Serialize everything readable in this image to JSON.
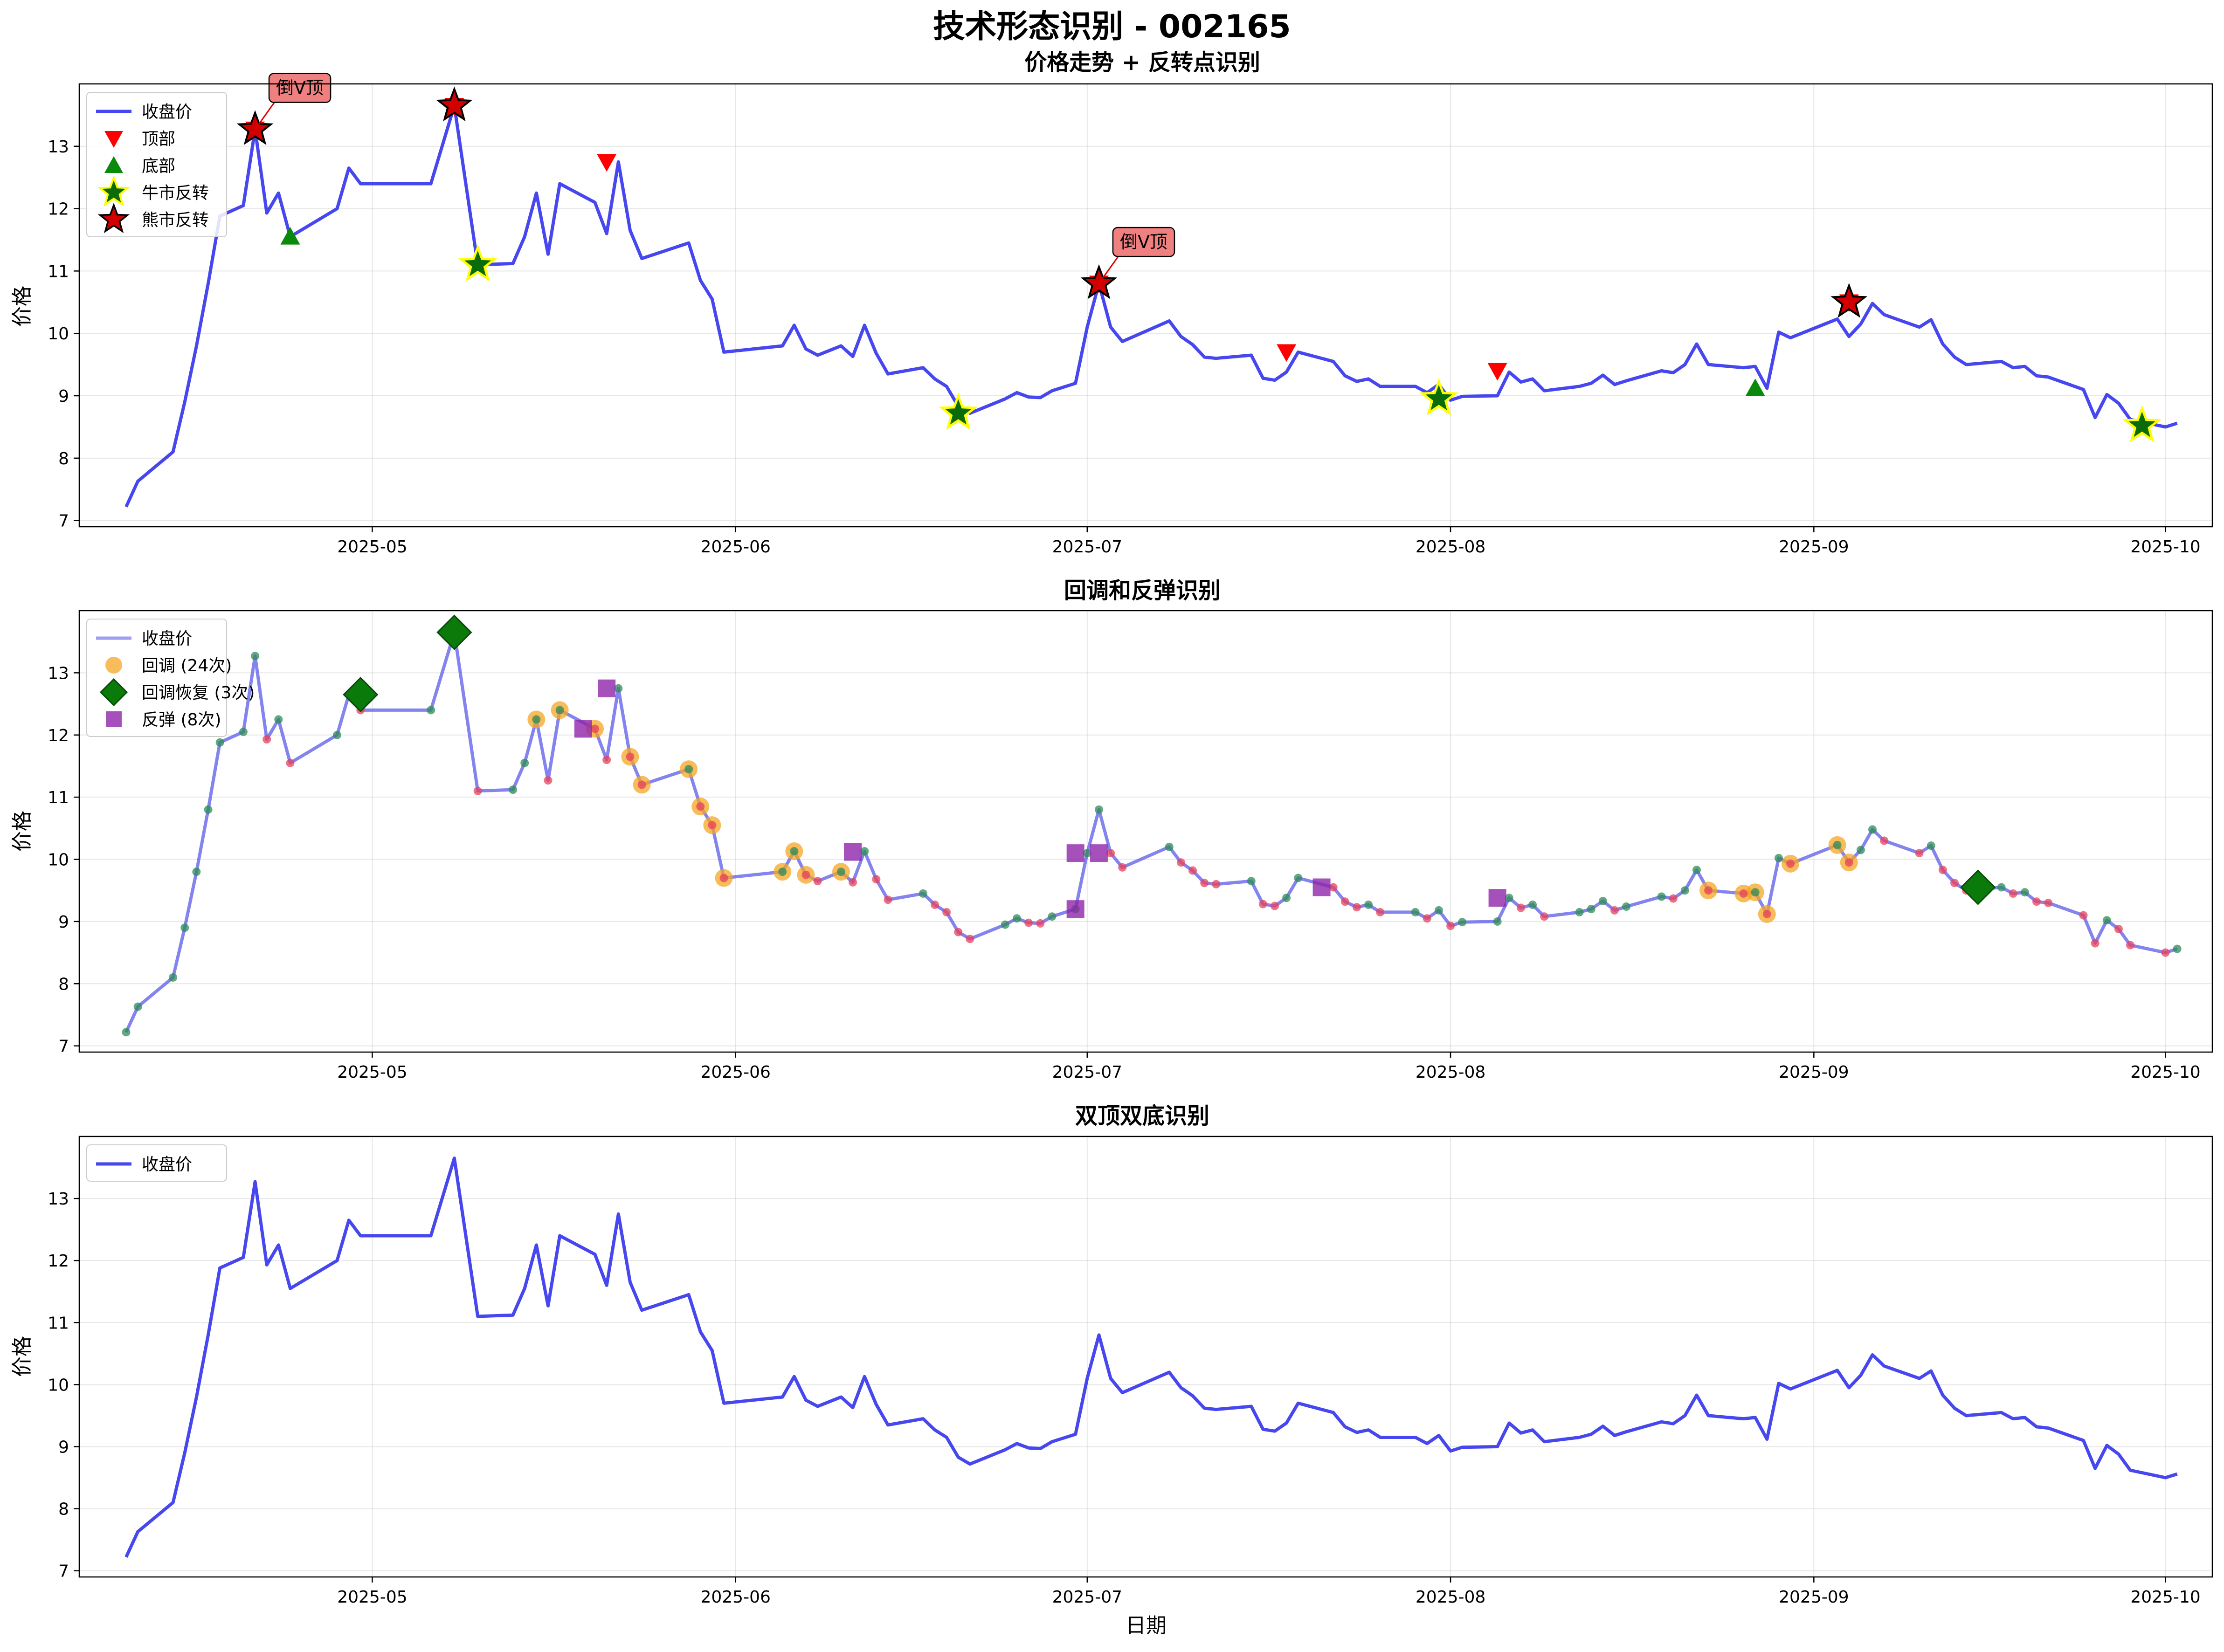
{
  "figure": {
    "title": "技术形态识别 - 002165"
  },
  "chart_data": [
    {
      "type": "line",
      "title": "价格走势 + 反转点识别",
      "xlabel": "",
      "ylabel": "价格",
      "ylim": [
        6.9,
        14.0
      ],
      "yticks": [
        7,
        8,
        9,
        10,
        11,
        12,
        13
      ],
      "xlim": [
        "2025-04-06",
        "2025-10-05"
      ],
      "xticks": [
        "2025-05-01",
        "2025-06-01",
        "2025-07-01",
        "2025-08-01",
        "2025-09-01",
        "2025-10-01"
      ],
      "xtick_labels": [
        "2025-05",
        "2025-06",
        "2025-07",
        "2025-08",
        "2025-09",
        "2025-10"
      ],
      "grid": true,
      "legend_position": "upper-left",
      "legend": [
        {
          "label": "收盘价",
          "kind": "line"
        },
        {
          "label": "顶部",
          "kind": "tri-down"
        },
        {
          "label": "底部",
          "kind": "tri-up"
        },
        {
          "label": "牛市反转",
          "kind": "star-bull"
        },
        {
          "label": "熊市反转",
          "kind": "star-bear"
        }
      ],
      "series_color": "#3333ee",
      "tops": [
        {
          "x": "2025-04-21",
          "y": 13.27
        },
        {
          "x": "2025-05-08",
          "y": 13.65
        },
        {
          "x": "2025-05-21",
          "y": 12.75
        },
        {
          "x": "2025-07-02",
          "y": 10.8
        },
        {
          "x": "2025-07-18",
          "y": 9.7
        },
        {
          "x": "2025-08-05",
          "y": 9.4
        },
        {
          "x": "2025-09-04",
          "y": 10.5
        }
      ],
      "bottoms": [
        {
          "x": "2025-04-24",
          "y": 11.55
        },
        {
          "x": "2025-08-27",
          "y": 9.12
        }
      ],
      "bull_reversals": [
        {
          "x": "2025-05-10",
          "y": 11.1
        },
        {
          "x": "2025-06-20",
          "y": 8.72
        },
        {
          "x": "2025-07-31",
          "y": 8.95
        },
        {
          "x": "2025-09-29",
          "y": 8.52
        }
      ],
      "bear_reversals": [
        {
          "x": "2025-04-21",
          "y": 13.27
        },
        {
          "x": "2025-05-08",
          "y": 13.65
        },
        {
          "x": "2025-07-02",
          "y": 10.8
        },
        {
          "x": "2025-09-04",
          "y": 10.5
        }
      ],
      "annotations": [
        {
          "text": "倒V顶",
          "x": "2025-04-21",
          "y": 13.27
        },
        {
          "text": "倒V顶",
          "x": "2025-07-02",
          "y": 10.8
        }
      ]
    },
    {
      "type": "line",
      "title": "回调和反弹识别",
      "xlabel": "",
      "ylabel": "价格",
      "ylim": [
        6.9,
        14.0
      ],
      "yticks": [
        7,
        8,
        9,
        10,
        11,
        12,
        13
      ],
      "grid": true,
      "legend_position": "upper-left",
      "legend": [
        {
          "label": "收盘价",
          "kind": "line-light"
        },
        {
          "label": "回调 (24次)",
          "kind": "circle-orange"
        },
        {
          "label": "回调恢复 (3次)",
          "kind": "diamond-green"
        },
        {
          "label": "反弹 (8次)",
          "kind": "square-purple"
        }
      ],
      "series_color": "#5050e8",
      "pullback_indices": [
        20,
        22,
        23,
        26,
        27,
        28,
        29,
        30,
        31,
        32,
        33,
        34,
        36,
        90,
        91,
        92,
        93,
        95,
        96,
        97,
        150,
        151,
        152,
        153
      ],
      "pullback_recovery": [
        {
          "x": "2025-04-30",
          "y": 12.65
        },
        {
          "x": "2025-05-08",
          "y": 13.65
        },
        {
          "x": "2025-09-15",
          "y": 9.55
        }
      ],
      "rebounds": [
        {
          "x": "2025-05-19",
          "y": 12.1
        },
        {
          "x": "2025-05-21",
          "y": 12.75
        },
        {
          "x": "2025-06-11",
          "y": 10.12
        },
        {
          "x": "2025-06-30",
          "y": 9.2
        },
        {
          "x": "2025-06-30",
          "y": 10.1
        },
        {
          "x": "2025-07-02",
          "y": 10.1
        },
        {
          "x": "2025-07-21",
          "y": 9.55
        },
        {
          "x": "2025-08-05",
          "y": 9.38
        }
      ]
    },
    {
      "type": "line",
      "title": "双顶双底识别",
      "xlabel": "日期",
      "ylabel": "价格",
      "ylim": [
        6.9,
        14.0
      ],
      "yticks": [
        7,
        8,
        9,
        10,
        11,
        12,
        13
      ],
      "grid": true,
      "legend_position": "upper-left",
      "legend": [
        {
          "label": "收盘价",
          "kind": "line"
        }
      ],
      "series_color": "#3333ee"
    }
  ],
  "series": {
    "name": "收盘价",
    "points": [
      [
        "2025-04-10",
        7.22
      ],
      [
        "2025-04-11",
        7.63
      ],
      [
        "2025-04-14",
        8.1
      ],
      [
        "2025-04-15",
        8.9
      ],
      [
        "2025-04-16",
        9.8
      ],
      [
        "2025-04-17",
        10.8
      ],
      [
        "2025-04-18",
        11.88
      ],
      [
        "2025-04-20",
        12.05
      ],
      [
        "2025-04-21",
        13.27
      ],
      [
        "2025-04-22",
        11.93
      ],
      [
        "2025-04-23",
        12.25
      ],
      [
        "2025-04-24",
        11.55
      ],
      [
        "2025-04-28",
        12.0
      ],
      [
        "2025-04-29",
        12.65
      ],
      [
        "2025-04-30",
        12.4
      ],
      [
        "2025-05-06",
        12.4
      ],
      [
        "2025-05-08",
        13.65
      ],
      [
        "2025-05-10",
        11.1
      ],
      [
        "2025-05-13",
        11.12
      ],
      [
        "2025-05-14",
        11.55
      ],
      [
        "2025-05-15",
        12.25
      ],
      [
        "2025-05-16",
        11.27
      ],
      [
        "2025-05-17",
        12.4
      ],
      [
        "2025-05-20",
        12.1
      ],
      [
        "2025-05-21",
        11.6
      ],
      [
        "2025-05-22",
        12.75
      ],
      [
        "2025-05-23",
        11.65
      ],
      [
        "2025-05-24",
        11.2
      ],
      [
        "2025-05-28",
        11.45
      ],
      [
        "2025-05-29",
        10.85
      ],
      [
        "2025-05-30",
        10.55
      ],
      [
        "2025-05-31",
        9.7
      ],
      [
        "2025-06-05",
        9.8
      ],
      [
        "2025-06-06",
        10.13
      ],
      [
        "2025-06-07",
        9.75
      ],
      [
        "2025-06-08",
        9.65
      ],
      [
        "2025-06-10",
        9.8
      ],
      [
        "2025-06-11",
        9.63
      ],
      [
        "2025-06-12",
        10.13
      ],
      [
        "2025-06-13",
        9.68
      ],
      [
        "2025-06-14",
        9.35
      ],
      [
        "2025-06-17",
        9.45
      ],
      [
        "2025-06-18",
        9.27
      ],
      [
        "2025-06-19",
        9.15
      ],
      [
        "2025-06-20",
        8.83
      ],
      [
        "2025-06-21",
        8.72
      ],
      [
        "2025-06-24",
        8.95
      ],
      [
        "2025-06-25",
        9.05
      ],
      [
        "2025-06-26",
        8.98
      ],
      [
        "2025-06-27",
        8.97
      ],
      [
        "2025-06-28",
        9.08
      ],
      [
        "2025-06-30",
        9.2
      ],
      [
        "2025-07-01",
        10.1
      ],
      [
        "2025-07-02",
        10.8
      ],
      [
        "2025-07-03",
        10.1
      ],
      [
        "2025-07-04",
        9.87
      ],
      [
        "2025-07-08",
        10.2
      ],
      [
        "2025-07-09",
        9.95
      ],
      [
        "2025-07-10",
        9.82
      ],
      [
        "2025-07-11",
        9.62
      ],
      [
        "2025-07-12",
        9.6
      ],
      [
        "2025-07-15",
        9.65
      ],
      [
        "2025-07-16",
        9.28
      ],
      [
        "2025-07-17",
        9.25
      ],
      [
        "2025-07-18",
        9.38
      ],
      [
        "2025-07-19",
        9.7
      ],
      [
        "2025-07-22",
        9.55
      ],
      [
        "2025-07-23",
        9.32
      ],
      [
        "2025-07-24",
        9.23
      ],
      [
        "2025-07-25",
        9.27
      ],
      [
        "2025-07-26",
        9.15
      ],
      [
        "2025-07-29",
        9.15
      ],
      [
        "2025-07-30",
        9.05
      ],
      [
        "2025-07-31",
        9.18
      ],
      [
        "2025-08-01",
        8.93
      ],
      [
        "2025-08-02",
        8.99
      ],
      [
        "2025-08-05",
        9.0
      ],
      [
        "2025-08-06",
        9.38
      ],
      [
        "2025-08-07",
        9.22
      ],
      [
        "2025-08-08",
        9.27
      ],
      [
        "2025-08-09",
        9.08
      ],
      [
        "2025-08-12",
        9.15
      ],
      [
        "2025-08-13",
        9.2
      ],
      [
        "2025-08-14",
        9.33
      ],
      [
        "2025-08-15",
        9.18
      ],
      [
        "2025-08-16",
        9.24
      ],
      [
        "2025-08-19",
        9.4
      ],
      [
        "2025-08-20",
        9.37
      ],
      [
        "2025-08-21",
        9.5
      ],
      [
        "2025-08-22",
        9.83
      ],
      [
        "2025-08-23",
        9.5
      ],
      [
        "2025-08-26",
        9.45
      ],
      [
        "2025-08-27",
        9.47
      ],
      [
        "2025-08-28",
        9.12
      ],
      [
        "2025-08-29",
        10.02
      ],
      [
        "2025-08-30",
        9.93
      ],
      [
        "2025-09-03",
        10.23
      ],
      [
        "2025-09-04",
        9.95
      ],
      [
        "2025-09-05",
        10.15
      ],
      [
        "2025-09-06",
        10.48
      ],
      [
        "2025-09-07",
        10.3
      ],
      [
        "2025-09-10",
        10.1
      ],
      [
        "2025-09-11",
        10.22
      ],
      [
        "2025-09-12",
        9.83
      ],
      [
        "2025-09-13",
        9.62
      ],
      [
        "2025-09-14",
        9.5
      ],
      [
        "2025-09-17",
        9.55
      ],
      [
        "2025-09-18",
        9.45
      ],
      [
        "2025-09-19",
        9.47
      ],
      [
        "2025-09-20",
        9.32
      ],
      [
        "2025-09-21",
        9.3
      ],
      [
        "2025-09-24",
        9.1
      ],
      [
        "2025-09-25",
        8.65
      ],
      [
        "2025-09-26",
        9.02
      ],
      [
        "2025-09-27",
        8.88
      ],
      [
        "2025-09-28",
        8.62
      ],
      [
        "2025-10-01",
        8.5
      ],
      [
        "2025-10-02",
        8.56
      ]
    ]
  }
}
